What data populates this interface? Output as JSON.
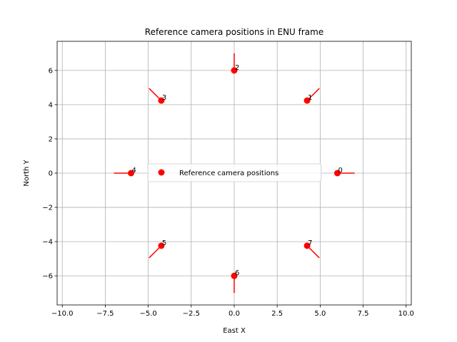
{
  "chart_data": {
    "type": "scatter",
    "title": "Reference camera positions in ENU frame",
    "xlabel": "East X",
    "ylabel": "North Y",
    "xlim": [
      -10.3,
      10.3
    ],
    "ylim": [
      -7.7,
      7.7
    ],
    "xticks": [
      -10.0,
      -7.5,
      -5.0,
      -2.5,
      0.0,
      2.5,
      5.0,
      7.5,
      10.0
    ],
    "xtick_labels": [
      "−10.0",
      "−7.5",
      "−5.0",
      "−2.5",
      "0.0",
      "2.5",
      "5.0",
      "7.5",
      "10.0"
    ],
    "yticks": [
      -6,
      -4,
      -2,
      0,
      2,
      4,
      6
    ],
    "ytick_labels": [
      "−6",
      "−4",
      "−2",
      "0",
      "2",
      "4",
      "6"
    ],
    "grid": true,
    "legend_position": "center",
    "series": [
      {
        "name": "Reference camera positions",
        "color": "#ff0000",
        "points": [
          {
            "label": "0",
            "x": 6.0,
            "y": 0.0,
            "dir_end": [
              7.0,
              0.0
            ]
          },
          {
            "label": "1",
            "x": 4.24,
            "y": 4.24,
            "dir_end": [
              4.95,
              4.95
            ]
          },
          {
            "label": "2",
            "x": 0.0,
            "y": 6.0,
            "dir_end": [
              0.0,
              7.0
            ]
          },
          {
            "label": "3",
            "x": -4.24,
            "y": 4.24,
            "dir_end": [
              -4.95,
              4.95
            ]
          },
          {
            "label": "4",
            "x": -6.0,
            "y": 0.0,
            "dir_end": [
              -7.0,
              0.0
            ]
          },
          {
            "label": "5",
            "x": -4.24,
            "y": -4.24,
            "dir_end": [
              -4.95,
              -4.95
            ]
          },
          {
            "label": "6",
            "x": 0.0,
            "y": -6.0,
            "dir_end": [
              0.0,
              -7.0
            ]
          },
          {
            "label": "7",
            "x": 4.24,
            "y": -4.24,
            "dir_end": [
              4.95,
              -4.95
            ]
          }
        ]
      }
    ]
  }
}
